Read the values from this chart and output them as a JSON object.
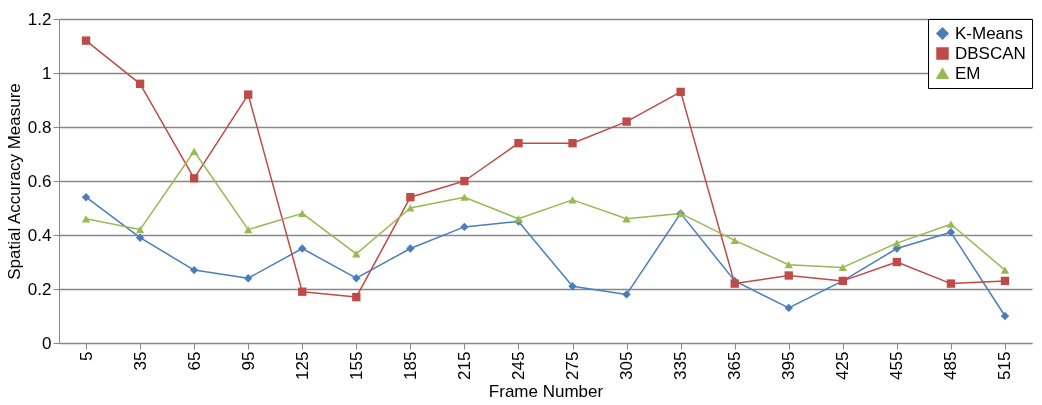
{
  "chart_data": {
    "type": "line",
    "xlabel": "Frame Number",
    "ylabel": "Spatial Accuracy Measure",
    "categories": [
      "5",
      "35",
      "65",
      "95",
      "125",
      "155",
      "185",
      "215",
      "245",
      "275",
      "305",
      "335",
      "365",
      "395",
      "425",
      "455",
      "485",
      "515"
    ],
    "ylim": [
      0,
      1.2
    ],
    "yticks": [
      0,
      0.2,
      0.4,
      0.6,
      0.8,
      1,
      1.2
    ],
    "grid": "y",
    "legend": "top right",
    "line_style": "solid",
    "series": [
      {
        "name": "K-Means",
        "color": "#4a7ebb",
        "marker": "diamond",
        "values": [
          0.54,
          0.39,
          0.27,
          0.24,
          0.35,
          0.24,
          0.35,
          0.43,
          0.45,
          0.21,
          0.18,
          0.48,
          0.23,
          0.13,
          0.23,
          0.35,
          0.41,
          0.1
        ]
      },
      {
        "name": "DBSCAN",
        "color": "#be4b48",
        "marker": "square",
        "values": [
          1.12,
          0.96,
          0.61,
          0.92,
          0.19,
          0.17,
          0.54,
          0.6,
          0.74,
          0.74,
          0.82,
          0.93,
          0.22,
          0.25,
          0.23,
          0.3,
          0.22,
          0.23
        ]
      },
      {
        "name": "EM",
        "color": "#98b954",
        "marker": "triangle",
        "values": [
          0.46,
          0.42,
          0.71,
          0.42,
          0.48,
          0.33,
          0.5,
          0.54,
          0.46,
          0.53,
          0.46,
          0.48,
          0.38,
          0.29,
          0.28,
          0.37,
          0.44,
          0.27
        ]
      }
    ]
  }
}
